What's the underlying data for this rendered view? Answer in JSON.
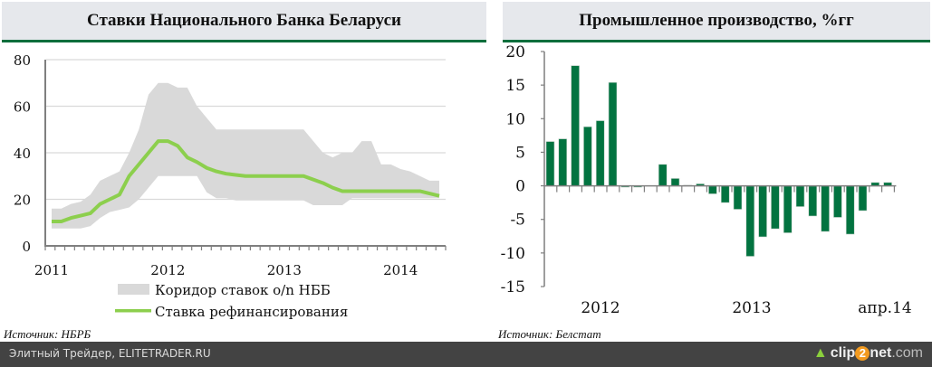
{
  "chart_data": [
    {
      "type": "area",
      "title": "Ставки Национального Банка Беларуси",
      "ylim": [
        0,
        80
      ],
      "yticks": [
        "0",
        "20",
        "40",
        "60",
        "80"
      ],
      "xticks": [
        "2011",
        "2012",
        "2013",
        "2014"
      ],
      "x_start": "2011-01",
      "x_freq": "monthly",
      "grid": true,
      "legend_position": "bottom",
      "series": [
        {
          "name": "Коридор ставок о/n НББ",
          "kind": "band",
          "color": "#d9d9d9",
          "upper": [
            16,
            16,
            18,
            19,
            22,
            28,
            30,
            32,
            40,
            50,
            65,
            70,
            70,
            68,
            68,
            60,
            55,
            50,
            50,
            50,
            50,
            50,
            50,
            50,
            50,
            50,
            50,
            45,
            40,
            38,
            40,
            40,
            45,
            45,
            35,
            35,
            33,
            32,
            30,
            28,
            28
          ],
          "lower": [
            7.5,
            7.5,
            7.5,
            7.5,
            8.5,
            12,
            14.5,
            15.5,
            16.5,
            20,
            25,
            30,
            30,
            30,
            30,
            30,
            23,
            20.5,
            20.5,
            19.5,
            19.5,
            19.5,
            19.5,
            19.5,
            19.5,
            19.5,
            19.5,
            17.5,
            17.5,
            17.5,
            17.5,
            20.5,
            20.5,
            20.5,
            20.5,
            20.5,
            20.5,
            20.5,
            20.5,
            20.5,
            20.5
          ]
        },
        {
          "name": "Ставка рефинансирования",
          "kind": "line",
          "color": "#8ccf4d",
          "values": [
            10.5,
            10.5,
            12,
            13,
            14,
            18,
            20,
            22,
            30,
            35,
            40,
            45,
            45,
            43,
            38,
            36,
            33.5,
            32,
            31,
            30.5,
            30,
            30,
            30,
            30,
            30,
            30,
            30,
            28.5,
            27,
            25,
            23.5,
            23.5,
            23.5,
            23.5,
            23.5,
            23.5,
            23.5,
            23.5,
            23.5,
            22.5,
            21.5
          ]
        }
      ],
      "source": "Источник: НБРБ"
    },
    {
      "type": "bar",
      "title": "Промышленное производство, %гг",
      "ylim": [
        -15,
        20
      ],
      "yticks": [
        "-15",
        "-10",
        "-5",
        "0",
        "5",
        "10",
        "15",
        "20"
      ],
      "xticks": [
        "2012",
        "2013",
        "апр.14"
      ],
      "x_start": "2012-01",
      "x_freq": "monthly",
      "color": "#027340",
      "values": [
        6.6,
        7.0,
        17.9,
        8.8,
        9.7,
        15.4,
        -0.2,
        -0.2,
        0,
        3.2,
        1.1,
        0.1,
        0.3,
        -1.2,
        -2.5,
        -3.5,
        -10.5,
        -7.6,
        -6.4,
        -7.0,
        -3.1,
        -4.5,
        -6.8,
        -4.7,
        -7.2,
        -3.7,
        0.5,
        0.5
      ],
      "source": "Источник: Белстат"
    }
  ],
  "footer": {
    "left": "Элитный Трейдер, ELITETRADER.RU",
    "brand_a": "clip",
    "brand_2": "2",
    "brand_b": "net",
    "brand_c": ".com"
  }
}
